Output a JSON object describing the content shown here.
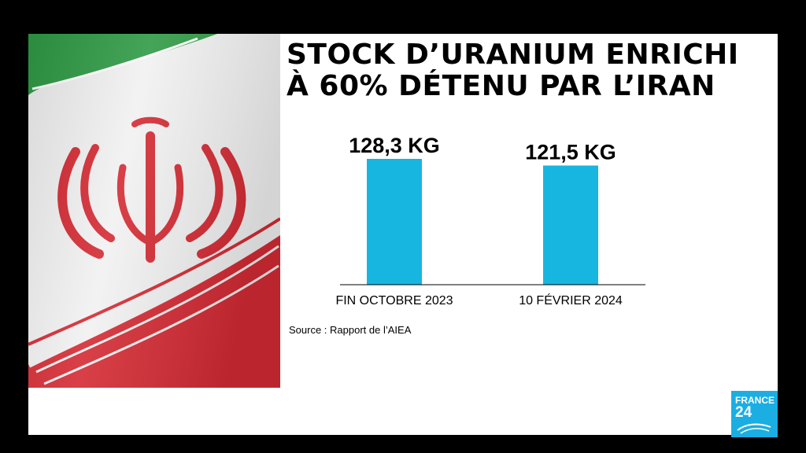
{
  "title_lines": [
    "STOCK D’URANIUM ENRICHI",
    "À 60% DÉTENU PAR L’IRAN"
  ],
  "source": "Source : Rapport de l’AIEA",
  "logo": {
    "line1": "FRANCE",
    "line2": "24"
  },
  "colors": {
    "bar": "#17b6e0",
    "flag_green": "#2f9a45",
    "flag_red": "#d42a33",
    "logo": "#1aaee3"
  },
  "flag_icon": "iran-flag",
  "chart_data": {
    "type": "bar",
    "categories": [
      "FIN OCTOBRE 2023",
      "10 FÉVRIER 2024"
    ],
    "values": [
      128.3,
      121.5
    ],
    "value_labels": [
      "128,3 KG",
      "121,5 KG"
    ],
    "ylim": [
      0,
      128.3
    ],
    "grid": false
  }
}
